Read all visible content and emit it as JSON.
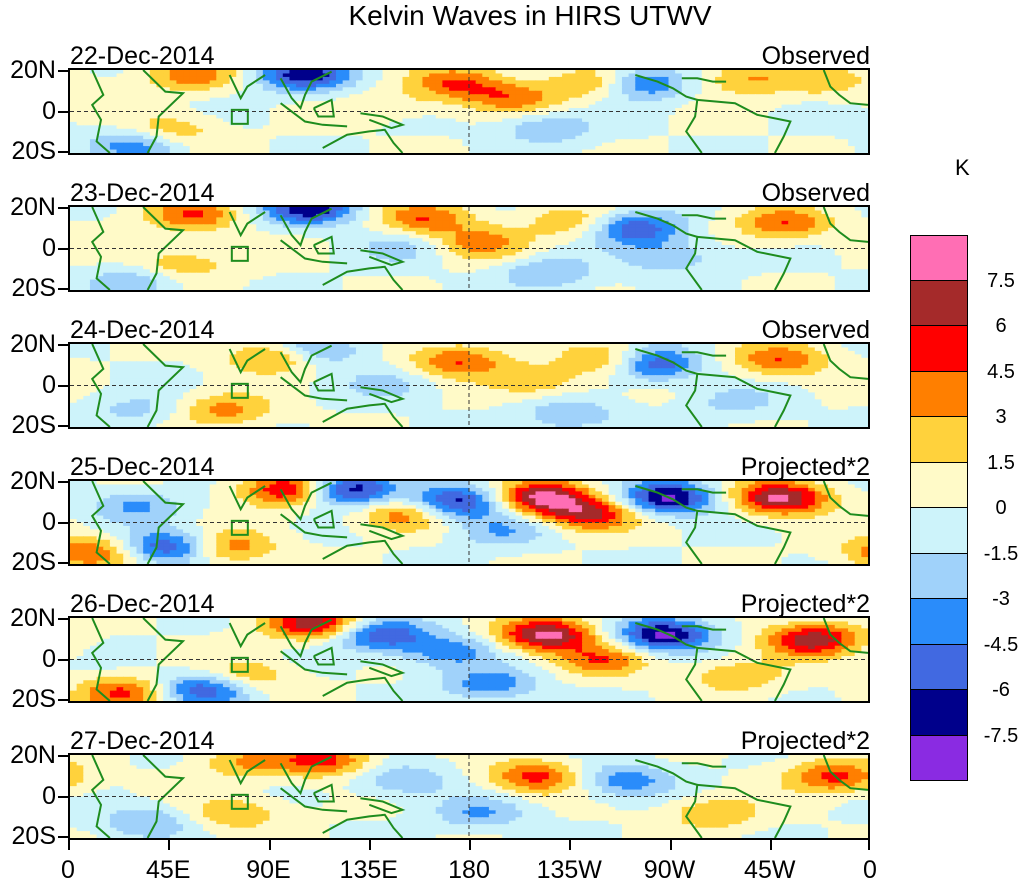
{
  "title": "Kelvin Waves in HIRS UTWV",
  "chart_data": {
    "type": "heatmap",
    "title": "Kelvin Waves in HIRS UTWV",
    "x_ticks": [
      "0",
      "45E",
      "90E",
      "135E",
      "180",
      "135W",
      "90W",
      "45W",
      "0"
    ],
    "y_ticks": [
      "20N",
      "0",
      "20S"
    ],
    "x_range_deg": [
      0,
      360
    ],
    "y_range_deg": [
      -25,
      25
    ],
    "colorbar": {
      "unit": "K",
      "labels": [
        "7.5",
        "6",
        "4.5",
        "3",
        "1.5",
        "0",
        "-1.5",
        "-3",
        "-4.5",
        "-6",
        "-7.5"
      ],
      "levels": [
        7.5,
        6,
        4.5,
        3,
        1.5,
        0,
        -1.5,
        -3,
        -4.5,
        -6,
        -7.5
      ],
      "colors": [
        "#ff6eb4",
        "#a52a2a",
        "#ff0000",
        "#ff7f00",
        "#ffd23c",
        "#fffac8",
        "#cdf3fa",
        "#a0d2fa",
        "#2a8cfa",
        "#4169e1",
        "#00008b",
        "#8a2be2"
      ]
    },
    "panels": [
      {
        "date": "22-Dec-2014",
        "label": "Observed",
        "scale": 1,
        "features": [
          {
            "lon": 200,
            "lat": 8,
            "value": 3.5
          },
          {
            "lon": 175,
            "lat": 17,
            "value": 4.5
          },
          {
            "lon": 240,
            "lat": 17,
            "value": 4.5
          },
          {
            "lon": 256,
            "lat": 17,
            "value": -6
          },
          {
            "lon": 106,
            "lat": 22,
            "value": -7
          },
          {
            "lon": 55,
            "lat": 22,
            "value": 4
          },
          {
            "lon": 305,
            "lat": 20,
            "value": 3
          },
          {
            "lon": 340,
            "lat": 18,
            "value": 2.5
          },
          {
            "lon": 30,
            "lat": -20,
            "value": -4
          },
          {
            "lon": 45,
            "lat": -12,
            "value": 3
          },
          {
            "lon": 215,
            "lat": -10,
            "value": -3
          },
          {
            "lon": 150,
            "lat": 5,
            "value": 1.2
          }
        ]
      },
      {
        "date": "23-Dec-2014",
        "label": "Observed",
        "scale": 1,
        "features": [
          {
            "lon": 55,
            "lat": 20,
            "value": 4.5
          },
          {
            "lon": 108,
            "lat": 24,
            "value": -7
          },
          {
            "lon": 160,
            "lat": 18,
            "value": 4.5
          },
          {
            "lon": 185,
            "lat": 3,
            "value": 3.5
          },
          {
            "lon": 228,
            "lat": 15,
            "value": 3
          },
          {
            "lon": 255,
            "lat": 12,
            "value": -6
          },
          {
            "lon": 322,
            "lat": 15,
            "value": 4.5
          },
          {
            "lon": 50,
            "lat": -10,
            "value": 3
          },
          {
            "lon": 150,
            "lat": 0,
            "value": -2
          },
          {
            "lon": 270,
            "lat": -5,
            "value": -3
          },
          {
            "lon": 30,
            "lat": -20,
            "value": -3
          },
          {
            "lon": 215,
            "lat": -15,
            "value": -3
          }
        ]
      },
      {
        "date": "24-Dec-2014",
        "label": "Observed",
        "scale": 1,
        "features": [
          {
            "lon": 93,
            "lat": 18,
            "value": 4.5
          },
          {
            "lon": 175,
            "lat": 15,
            "value": 4.5
          },
          {
            "lon": 245,
            "lat": 15,
            "value": 4.5
          },
          {
            "lon": 262,
            "lat": 13,
            "value": -7
          },
          {
            "lon": 320,
            "lat": 15,
            "value": 4.5
          },
          {
            "lon": 210,
            "lat": 3,
            "value": 3
          },
          {
            "lon": 110,
            "lat": 22,
            "value": -4.5
          },
          {
            "lon": 70,
            "lat": -15,
            "value": 3.5
          },
          {
            "lon": 145,
            "lat": 0,
            "value": -2
          },
          {
            "lon": 225,
            "lat": -18,
            "value": -3
          },
          {
            "lon": 300,
            "lat": -10,
            "value": -2
          },
          {
            "lon": 30,
            "lat": -15,
            "value": -2
          }
        ]
      },
      {
        "date": "25-Dec-2014",
        "label": "Projected*2",
        "scale": 2,
        "features": [
          {
            "lon": 100,
            "lat": 20,
            "value": 7
          },
          {
            "lon": 125,
            "lat": 20,
            "value": -8
          },
          {
            "lon": 175,
            "lat": 12,
            "value": -7
          },
          {
            "lon": 213,
            "lat": 15,
            "value": 8
          },
          {
            "lon": 234,
            "lat": 5,
            "value": 6
          },
          {
            "lon": 270,
            "lat": 15,
            "value": -8
          },
          {
            "lon": 320,
            "lat": 15,
            "value": 8
          },
          {
            "lon": 70,
            "lat": -15,
            "value": 4.5
          },
          {
            "lon": 45,
            "lat": -15,
            "value": -6.5
          },
          {
            "lon": 30,
            "lat": 10,
            "value": -3
          },
          {
            "lon": 150,
            "lat": 5,
            "value": 4
          },
          {
            "lon": 10,
            "lat": -18,
            "value": 4.5
          },
          {
            "lon": 195,
            "lat": -5,
            "value": -3
          }
        ]
      },
      {
        "date": "26-Dec-2014",
        "label": "Projected*2",
        "scale": 2,
        "features": [
          {
            "lon": 110,
            "lat": 22,
            "value": 7
          },
          {
            "lon": 215,
            "lat": 15,
            "value": 8
          },
          {
            "lon": 268,
            "lat": 15,
            "value": -8
          },
          {
            "lon": 335,
            "lat": 12,
            "value": 7
          },
          {
            "lon": 140,
            "lat": 15,
            "value": -6
          },
          {
            "lon": 25,
            "lat": -20,
            "value": 5
          },
          {
            "lon": 80,
            "lat": -10,
            "value": 3
          },
          {
            "lon": 60,
            "lat": -18,
            "value": -6
          },
          {
            "lon": 170,
            "lat": 5,
            "value": -4
          },
          {
            "lon": 300,
            "lat": -10,
            "value": 3
          },
          {
            "lon": 240,
            "lat": 0,
            "value": 4
          },
          {
            "lon": 190,
            "lat": -15,
            "value": -4
          }
        ]
      },
      {
        "date": "27-Dec-2014",
        "label": "Projected*2",
        "scale": 2,
        "features": [
          {
            "lon": 115,
            "lat": 22,
            "value": 5
          },
          {
            "lon": 210,
            "lat": 12,
            "value": 5
          },
          {
            "lon": 345,
            "lat": 12,
            "value": 5
          },
          {
            "lon": 250,
            "lat": 10,
            "value": -4
          },
          {
            "lon": 150,
            "lat": 10,
            "value": -3
          },
          {
            "lon": 35,
            "lat": -15,
            "value": -3
          },
          {
            "lon": 75,
            "lat": -10,
            "value": 3
          },
          {
            "lon": 290,
            "lat": -10,
            "value": 3
          },
          {
            "lon": 185,
            "lat": -10,
            "value": -3
          },
          {
            "lon": 80,
            "lat": 20,
            "value": 3
          }
        ]
      }
    ]
  }
}
